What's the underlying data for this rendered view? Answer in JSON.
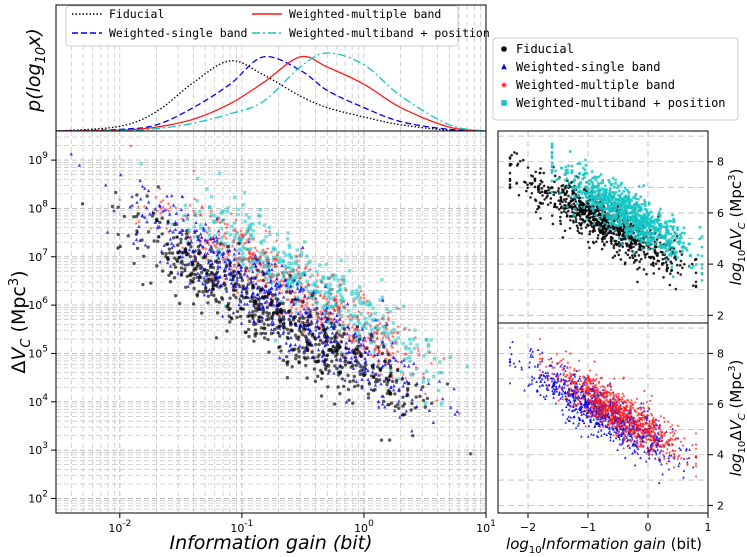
{
  "colors": {
    "fiducial": "#000000",
    "single": "#0000ee",
    "multiple": "#ff1a1a",
    "multipos": "#14c4c4",
    "grid": "#b8b8b8"
  },
  "legend_top": [
    {
      "key": "fiducial",
      "label": "Fiducial",
      "style": "dotted"
    },
    {
      "key": "multiple",
      "label": "Weighted-multiple band",
      "style": "solid"
    },
    {
      "key": "single",
      "label": "Weighted-single band",
      "style": "dashed"
    },
    {
      "key": "multipos",
      "label": "Weighted-multiband + position",
      "style": "dashdot"
    }
  ],
  "legend_right": [
    {
      "key": "fiducial",
      "label": "Fiducial",
      "marker": "circle"
    },
    {
      "key": "single",
      "label": "Weighted-single band",
      "marker": "triangle"
    },
    {
      "key": "multiple",
      "label": "Weighted-multiple band",
      "marker": "star"
    },
    {
      "key": "multipos",
      "label": "Weighted-multiband + position",
      "marker": "square"
    }
  ],
  "labels": {
    "top_ylabel": "p(log10x)",
    "main_xlabel": "Information gain (bit)",
    "main_ylabel": "ΔVC (Mpc3)",
    "right_xlabel": "log10Information gain (bit)",
    "right_ylabel_top": "log10ΔVC (Mpc3)",
    "right_ylabel_bottom": "log10ΔVC (Mpc3)"
  },
  "chart_data": [
    {
      "type": "line",
      "panel": "marginal-distribution",
      "xscale": "log",
      "xlim": [
        0.003,
        10
      ],
      "x": [
        0.003,
        0.01,
        0.02,
        0.04,
        0.08,
        0.15,
        0.3,
        0.5,
        1,
        2,
        5,
        10
      ],
      "series": [
        {
          "name": "Fiducial",
          "values": [
            0.0,
            0.06,
            0.25,
            0.62,
            0.9,
            0.72,
            0.45,
            0.3,
            0.18,
            0.08,
            0.01,
            0.0
          ]
        },
        {
          "name": "Weighted-single band",
          "values": [
            0.0,
            0.02,
            0.08,
            0.3,
            0.6,
            0.95,
            0.78,
            0.52,
            0.3,
            0.12,
            0.02,
            0.0
          ]
        },
        {
          "name": "Weighted-multiple band",
          "values": [
            0.0,
            0.01,
            0.05,
            0.15,
            0.35,
            0.62,
            0.95,
            0.82,
            0.6,
            0.3,
            0.05,
            0.0
          ]
        },
        {
          "name": "Weighted-multiband + position",
          "values": [
            0.0,
            0.005,
            0.03,
            0.1,
            0.22,
            0.38,
            0.82,
            1.0,
            0.85,
            0.45,
            0.08,
            0.0
          ]
        }
      ]
    },
    {
      "type": "scatter",
      "panel": "main",
      "xscale": "log",
      "yscale": "log",
      "xlim": [
        0.003,
        10
      ],
      "ylim": [
        50,
        4000000000
      ],
      "x_ticks": [
        "10^-2",
        "10^-1",
        "10^0",
        "10^1"
      ],
      "y_ticks": [
        "10^2",
        "10^3",
        "10^4",
        "10^5",
        "10^6",
        "10^7",
        "10^8",
        "10^9"
      ],
      "series": [
        {
          "name": "Fiducial",
          "relation": "log10(dVC) ≈ 4.6 − 1.55·log10(gain)",
          "x_range": [
            0.004,
            8
          ],
          "n_shown": 650
        },
        {
          "name": "Weighted-single band",
          "relation": "log10(dVC) ≈ 4.9 − 1.6·log10(gain)",
          "x_range": [
            0.004,
            8
          ],
          "n_shown": 650
        },
        {
          "name": "Weighted-multiple band",
          "relation": "log10(dVC) ≈ 5.4 − 1.6·log10(gain)",
          "x_range": [
            0.01,
            8
          ],
          "n_shown": 550
        },
        {
          "name": "Weighted-multiband + position",
          "relation": "log10(dVC) ≈ 5.7 − 1.6·log10(gain)",
          "x_range": [
            0.015,
            8
          ],
          "n_shown": 500
        }
      ]
    },
    {
      "type": "scatter",
      "panel": "right-top",
      "xlim": [
        -2.5,
        1
      ],
      "ylim": [
        1.7,
        9.2
      ],
      "x_ticks": [
        -2,
        -1,
        0,
        1
      ],
      "y_ticks": [
        2,
        4,
        6,
        8
      ],
      "series": [
        {
          "name": "Fiducial",
          "relation": "y ≈ 4.7 − 1.3·x",
          "x_range": [
            -2.3,
            0.8
          ]
        },
        {
          "name": "Weighted-multiband + position",
          "relation": "y ≈ 5.5 − 1.4·x",
          "x_range": [
            -1.6,
            0.9
          ]
        }
      ]
    },
    {
      "type": "scatter",
      "panel": "right-bottom",
      "xlim": [
        -2.5,
        1
      ],
      "ylim": [
        1.7,
        9.2
      ],
      "x_ticks": [
        -2,
        -1,
        0,
        1
      ],
      "y_ticks": [
        2,
        4,
        6,
        8
      ],
      "series": [
        {
          "name": "Weighted-single band",
          "relation": "y ≈ 4.6 − 1.4·x",
          "x_range": [
            -2.3,
            0.8
          ]
        },
        {
          "name": "Weighted-multiple band",
          "relation": "y ≈ 5.0 − 1.4·x",
          "x_range": [
            -1.8,
            0.8
          ]
        }
      ]
    }
  ]
}
